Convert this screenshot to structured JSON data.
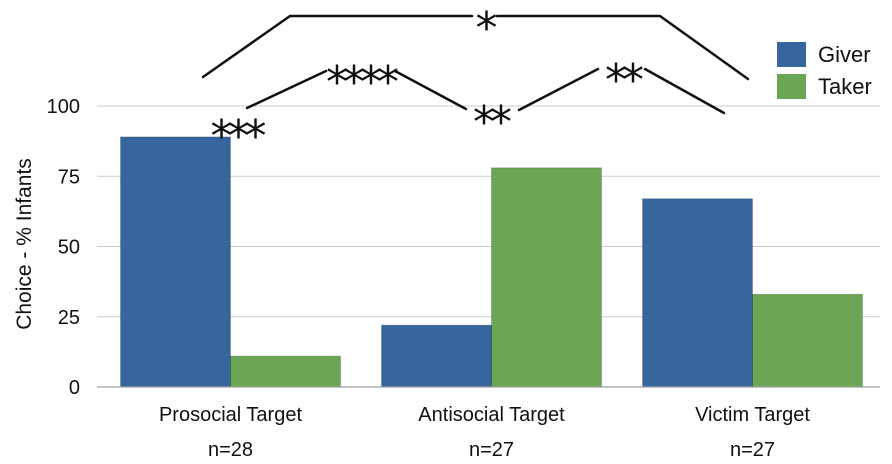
{
  "chart_data": {
    "type": "bar",
    "categories": [
      "Prosocial Target",
      "Antisocial Target",
      "Victim Target"
    ],
    "sample_sizes": [
      "n=28",
      "n=27",
      "n=27"
    ],
    "series": [
      {
        "name": "Giver",
        "color": "#37659e",
        "values": [
          89,
          22,
          67
        ]
      },
      {
        "name": "Taker",
        "color": "#6ba654",
        "values": [
          11,
          78,
          33
        ]
      }
    ],
    "ylabel": "Choice - % Infants",
    "ylim": [
      0,
      100
    ],
    "yticks": [
      0,
      25,
      50,
      75,
      100
    ],
    "grid": true,
    "legend": "top-right",
    "significance": [
      {
        "text": "*"
      },
      {
        "text": "****"
      },
      {
        "text": "**"
      },
      {
        "text": "***"
      },
      {
        "text": "**"
      }
    ]
  }
}
